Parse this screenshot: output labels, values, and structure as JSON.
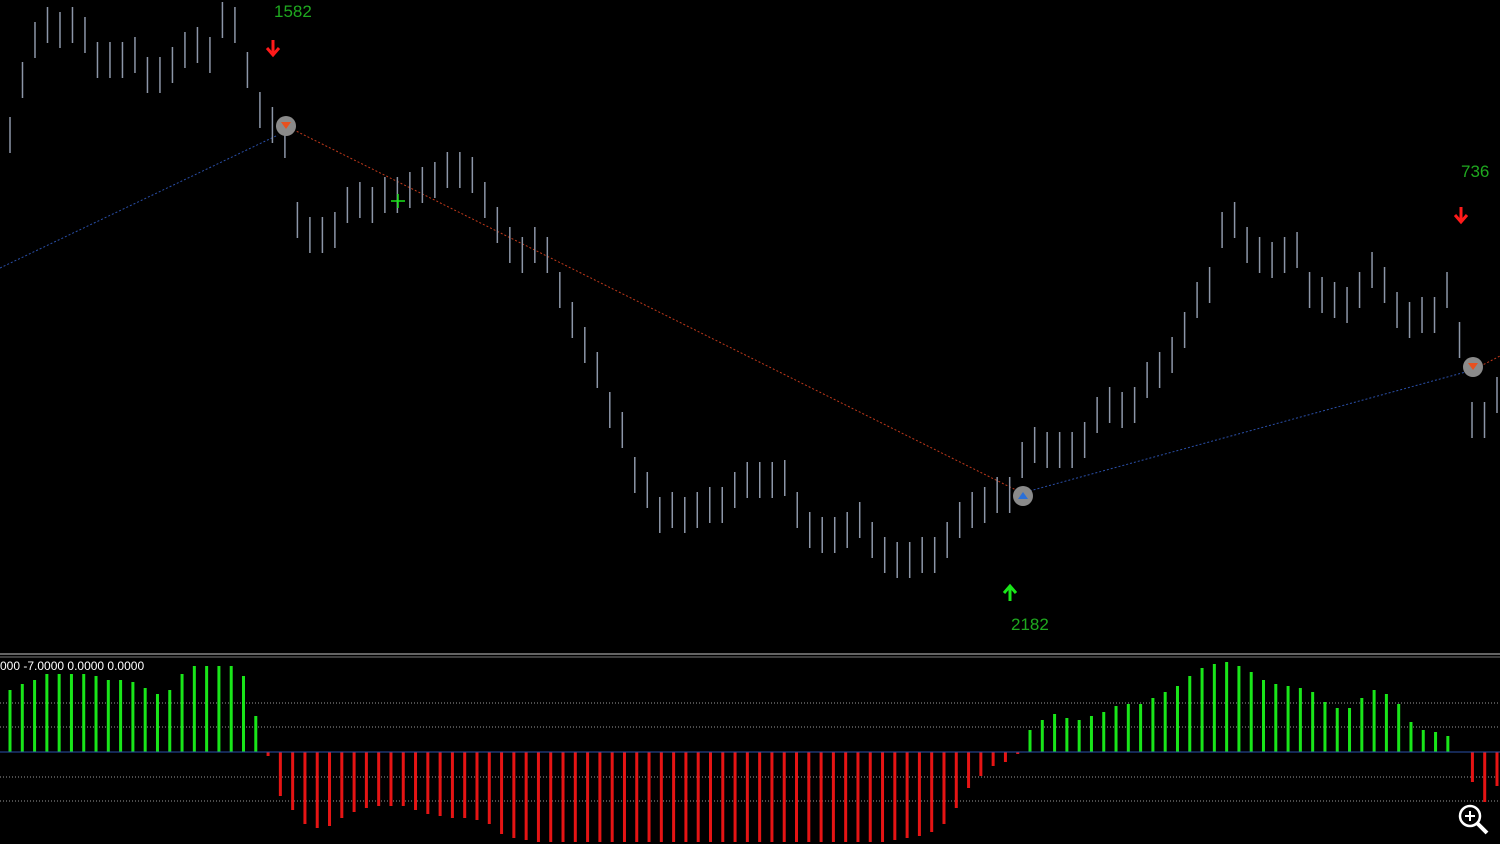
{
  "chart_data": [
    {
      "type": "ohlc",
      "color": "#8c96a8",
      "ylim": [
        0,
        650
      ],
      "annotations": [
        "1582",
        "736",
        "2182"
      ],
      "high": [
        533,
        588,
        628,
        643,
        638,
        643,
        633,
        608,
        608,
        608,
        613,
        593,
        593,
        603,
        618,
        623,
        613,
        648,
        643,
        598,
        558,
        543,
        528,
        448,
        433,
        433,
        438,
        463,
        468,
        463,
        473,
        473,
        478,
        483,
        488,
        498,
        498,
        493,
        468,
        443,
        423,
        413,
        423,
        413,
        378,
        348,
        323,
        298,
        258,
        238,
        193,
        178,
        153,
        158,
        153,
        158,
        163,
        163,
        178,
        188,
        188,
        188,
        190,
        158,
        138,
        133,
        133,
        138,
        148,
        128,
        113,
        108,
        108,
        113,
        113,
        128,
        148,
        158,
        163,
        173,
        173,
        208,
        223,
        218,
        218,
        218,
        228,
        253,
        263,
        258,
        263,
        288,
        298,
        313,
        338,
        368,
        383,
        438,
        448,
        423,
        413,
        408,
        413,
        418,
        378,
        373,
        368,
        363,
        378,
        398,
        383,
        358,
        348,
        353,
        353,
        378,
        328,
        248,
        248,
        273
      ],
      "low": [
        497,
        552,
        592,
        607,
        602,
        607,
        597,
        572,
        572,
        572,
        577,
        557,
        557,
        567,
        582,
        587,
        577,
        612,
        607,
        562,
        522,
        507,
        492,
        412,
        397,
        397,
        402,
        427,
        432,
        427,
        437,
        437,
        442,
        447,
        452,
        462,
        462,
        457,
        432,
        407,
        387,
        377,
        387,
        377,
        342,
        312,
        287,
        262,
        222,
        202,
        157,
        142,
        117,
        122,
        117,
        122,
        127,
        127,
        142,
        152,
        152,
        152,
        154,
        122,
        102,
        97,
        97,
        102,
        112,
        92,
        77,
        72,
        72,
        77,
        77,
        92,
        112,
        122,
        127,
        137,
        137,
        172,
        187,
        182,
        182,
        182,
        192,
        217,
        227,
        222,
        227,
        252,
        262,
        277,
        302,
        332,
        347,
        402,
        412,
        387,
        377,
        372,
        377,
        382,
        342,
        337,
        332,
        327,
        342,
        362,
        347,
        322,
        312,
        317,
        317,
        342,
        292,
        212,
        212,
        237
      ]
    },
    {
      "type": "histogram",
      "title": "000 -7.0000 0.0000 0.0000",
      "ylim": [
        -92,
        92
      ],
      "levels": [
        -49,
        -25,
        25,
        49
      ],
      "up_color": "#19e619",
      "down_color": "#e61414",
      "values": [
        62,
        68,
        72,
        78,
        78,
        78,
        78,
        76,
        72,
        72,
        70,
        64,
        58,
        62,
        78,
        86,
        86,
        86,
        86,
        76,
        36,
        -4,
        -44,
        -58,
        -72,
        -76,
        -74,
        -66,
        -60,
        -56,
        -54,
        -54,
        -54,
        -58,
        -62,
        -64,
        -66,
        -66,
        -68,
        -72,
        -82,
        -86,
        -88,
        -90,
        -90,
        -90,
        -90,
        -90,
        -90,
        -90,
        -90,
        -90,
        -90,
        -90,
        -90,
        -90,
        -90,
        -90,
        -90,
        -90,
        -90,
        -90,
        -90,
        -90,
        -90,
        -90,
        -90,
        -90,
        -90,
        -90,
        -90,
        -90,
        -88,
        -86,
        -84,
        -80,
        -72,
        -56,
        -36,
        -24,
        -14,
        -10,
        -2,
        22,
        32,
        38,
        34,
        32,
        36,
        40,
        46,
        48,
        48,
        54,
        60,
        66,
        76,
        84,
        88,
        90,
        86,
        80,
        72,
        68,
        66,
        64,
        60,
        50,
        44,
        44,
        54,
        62,
        58,
        48,
        30,
        22,
        20,
        16,
        0,
        -30,
        -50,
        -34
      ]
    }
  ]
}
